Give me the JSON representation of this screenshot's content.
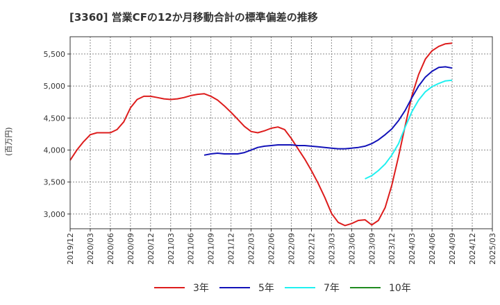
{
  "chart_data": {
    "type": "line",
    "title": "[3360]  営業CFの12か月移動合計の標準偏差の推移",
    "ylabel": "(百万円)",
    "xlabel": "",
    "ylim": [
      2770,
      5770
    ],
    "xlim": [
      "2019-12",
      "2025-03"
    ],
    "grid": true,
    "legend_position": "bottom",
    "x_ticks": [
      "2019/12",
      "2020/03",
      "2020/06",
      "2020/09",
      "2020/12",
      "2021/03",
      "2021/06",
      "2021/09",
      "2021/12",
      "2022/03",
      "2022/06",
      "2022/09",
      "2022/12",
      "2023/03",
      "2023/06",
      "2023/09",
      "2023/12",
      "2024/03",
      "2024/06",
      "2024/09",
      "2024/12",
      "2025/03"
    ],
    "y_ticks": [
      3000,
      3500,
      4000,
      4500,
      5000,
      5500
    ],
    "y_tick_labels": [
      "3,000",
      "3,500",
      "4,000",
      "4,500",
      "5,000",
      "5,500"
    ],
    "series": [
      {
        "name": "3年",
        "color": "#dd1c1c",
        "points": [
          [
            "2019-12",
            3840
          ],
          [
            "2020-01",
            4000
          ],
          [
            "2020-02",
            4130
          ],
          [
            "2020-03",
            4240
          ],
          [
            "2020-04",
            4270
          ],
          [
            "2020-05",
            4270
          ],
          [
            "2020-06",
            4270
          ],
          [
            "2020-07",
            4320
          ],
          [
            "2020-08",
            4440
          ],
          [
            "2020-09",
            4660
          ],
          [
            "2020-10",
            4790
          ],
          [
            "2020-11",
            4840
          ],
          [
            "2020-12",
            4840
          ],
          [
            "2021-01",
            4820
          ],
          [
            "2021-02",
            4800
          ],
          [
            "2021-03",
            4790
          ],
          [
            "2021-04",
            4800
          ],
          [
            "2021-05",
            4820
          ],
          [
            "2021-06",
            4850
          ],
          [
            "2021-07",
            4870
          ],
          [
            "2021-08",
            4880
          ],
          [
            "2021-09",
            4840
          ],
          [
            "2021-10",
            4780
          ],
          [
            "2021-11",
            4690
          ],
          [
            "2021-12",
            4590
          ],
          [
            "2022-01",
            4480
          ],
          [
            "2022-02",
            4370
          ],
          [
            "2022-03",
            4290
          ],
          [
            "2022-04",
            4270
          ],
          [
            "2022-05",
            4300
          ],
          [
            "2022-06",
            4340
          ],
          [
            "2022-07",
            4360
          ],
          [
            "2022-08",
            4320
          ],
          [
            "2022-09",
            4180
          ],
          [
            "2022-10",
            4020
          ],
          [
            "2022-11",
            3860
          ],
          [
            "2022-12",
            3680
          ],
          [
            "2023-01",
            3480
          ],
          [
            "2023-02",
            3260
          ],
          [
            "2023-03",
            3010
          ],
          [
            "2023-04",
            2870
          ],
          [
            "2023-05",
            2820
          ],
          [
            "2023-06",
            2850
          ],
          [
            "2023-07",
            2900
          ],
          [
            "2023-08",
            2910
          ],
          [
            "2023-09",
            2830
          ],
          [
            "2023-10",
            2900
          ],
          [
            "2023-11",
            3100
          ],
          [
            "2023-12",
            3450
          ],
          [
            "2024-01",
            3900
          ],
          [
            "2024-02",
            4380
          ],
          [
            "2024-03",
            4850
          ],
          [
            "2024-04",
            5180
          ],
          [
            "2024-05",
            5420
          ],
          [
            "2024-06",
            5550
          ],
          [
            "2024-07",
            5620
          ],
          [
            "2024-08",
            5660
          ],
          [
            "2024-09",
            5670
          ]
        ]
      },
      {
        "name": "5年",
        "color": "#1212b8",
        "points": [
          [
            "2021-08",
            3920
          ],
          [
            "2021-09",
            3940
          ],
          [
            "2021-10",
            3950
          ],
          [
            "2021-11",
            3940
          ],
          [
            "2021-12",
            3940
          ],
          [
            "2022-01",
            3940
          ],
          [
            "2022-02",
            3960
          ],
          [
            "2022-03",
            4000
          ],
          [
            "2022-04",
            4040
          ],
          [
            "2022-05",
            4060
          ],
          [
            "2022-06",
            4070
          ],
          [
            "2022-07",
            4080
          ],
          [
            "2022-08",
            4080
          ],
          [
            "2022-09",
            4080
          ],
          [
            "2022-10",
            4070
          ],
          [
            "2022-11",
            4070
          ],
          [
            "2022-12",
            4060
          ],
          [
            "2023-01",
            4050
          ],
          [
            "2023-02",
            4040
          ],
          [
            "2023-03",
            4030
          ],
          [
            "2023-04",
            4020
          ],
          [
            "2023-05",
            4020
          ],
          [
            "2023-06",
            4030
          ],
          [
            "2023-07",
            4040
          ],
          [
            "2023-08",
            4060
          ],
          [
            "2023-09",
            4100
          ],
          [
            "2023-10",
            4160
          ],
          [
            "2023-11",
            4240
          ],
          [
            "2023-12",
            4330
          ],
          [
            "2024-01",
            4460
          ],
          [
            "2024-02",
            4620
          ],
          [
            "2024-03",
            4820
          ],
          [
            "2024-04",
            5000
          ],
          [
            "2024-05",
            5140
          ],
          [
            "2024-06",
            5230
          ],
          [
            "2024-07",
            5290
          ],
          [
            "2024-08",
            5300
          ],
          [
            "2024-09",
            5280
          ]
        ]
      },
      {
        "name": "7年",
        "color": "#1ff0f0",
        "points": [
          [
            "2023-08",
            3550
          ],
          [
            "2023-09",
            3600
          ],
          [
            "2023-10",
            3680
          ],
          [
            "2023-11",
            3780
          ],
          [
            "2023-12",
            3920
          ],
          [
            "2024-01",
            4100
          ],
          [
            "2024-02",
            4360
          ],
          [
            "2024-03",
            4600
          ],
          [
            "2024-04",
            4780
          ],
          [
            "2024-05",
            4910
          ],
          [
            "2024-06",
            4990
          ],
          [
            "2024-07",
            5040
          ],
          [
            "2024-08",
            5080
          ],
          [
            "2024-09",
            5090
          ]
        ]
      },
      {
        "name": "10年",
        "color": "#1e8a1e",
        "points": []
      }
    ]
  }
}
